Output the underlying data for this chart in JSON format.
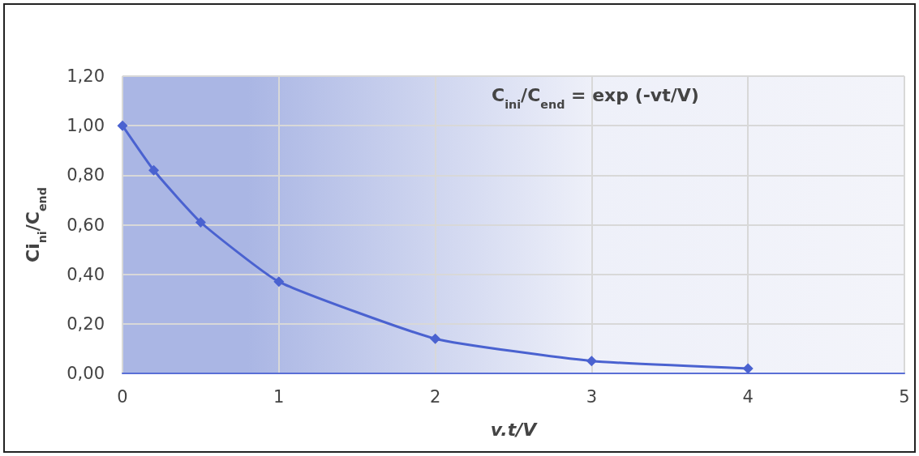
{
  "chart_data": {
    "type": "line",
    "xlabel": "v.t/V",
    "ylabel": "Ci$_{ni}$/C$_{end}$",
    "annotations": [
      "C$_{ini}$/C$_{end}$ = exp (-vt/V)"
    ],
    "x": [
      0,
      0.2,
      0.5,
      1,
      2,
      3,
      4
    ],
    "series": [
      {
        "color": "#4a62d0",
        "values": [
          1.0,
          0.82,
          0.61,
          0.37,
          0.14,
          0.05,
          0.02
        ]
      }
    ],
    "xlim": [
      0,
      5
    ],
    "xticks": [
      0,
      1,
      2,
      3,
      4,
      5
    ],
    "ylim": [
      0,
      1.2
    ],
    "yticks": [
      {
        "value": 0,
        "label": "0,00"
      },
      {
        "value": 0.2,
        "label": "0,20"
      },
      {
        "value": 0.4,
        "label": "0,40"
      },
      {
        "value": 0.6,
        "label": "0,60"
      },
      {
        "value": 0.8,
        "label": "0,80"
      },
      {
        "value": 1.0,
        "label": "1,00"
      },
      {
        "value": 1.2,
        "label": "1,20"
      }
    ],
    "grid": true,
    "marker": "diamond",
    "line_style": "solid"
  }
}
